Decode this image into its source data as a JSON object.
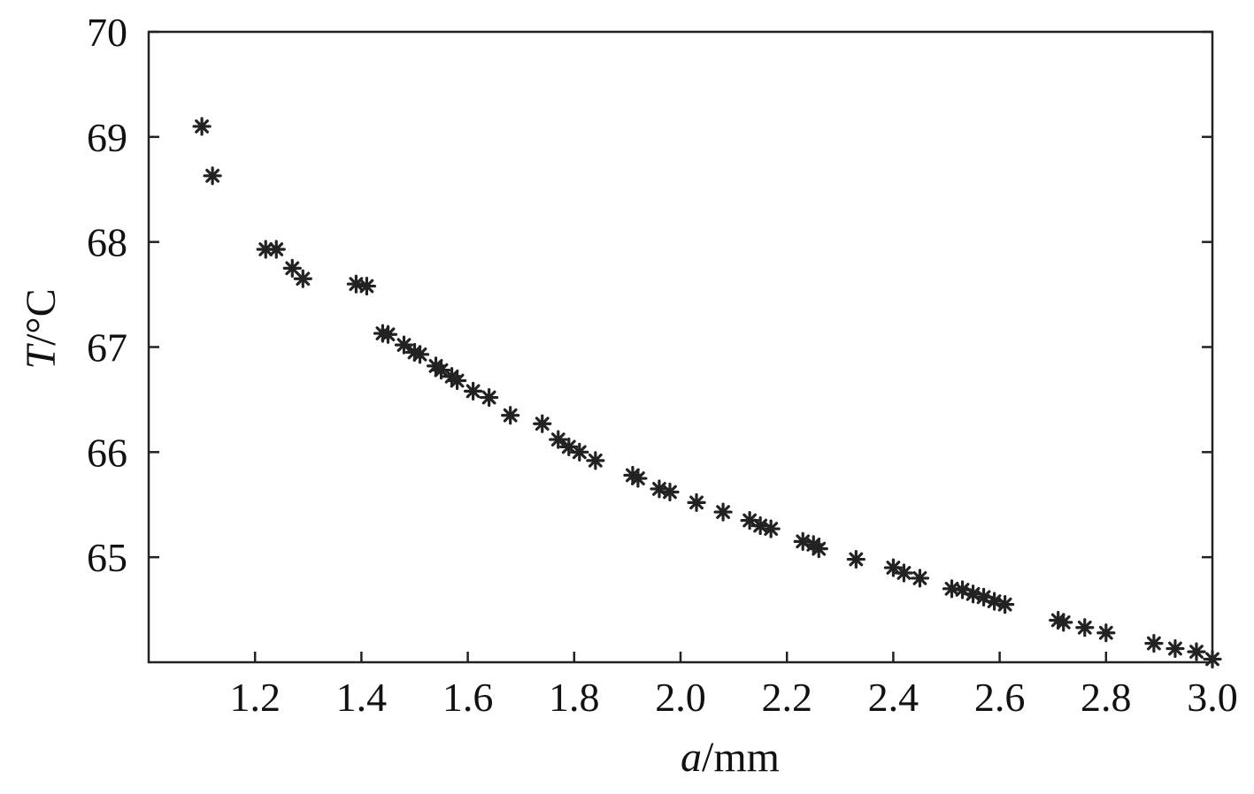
{
  "chart_data": {
    "type": "scatter",
    "xlabel": {
      "italic": "a",
      "rest": "/mm"
    },
    "ylabel": {
      "italic": "T",
      "rest": "/°C"
    },
    "xlim": [
      1.0,
      3.0
    ],
    "ylim": [
      64.0,
      70.0
    ],
    "xticks": [
      "1.2",
      "1.4",
      "1.6",
      "1.8",
      "2.0",
      "2.2",
      "2.4",
      "2.6",
      "2.8",
      "3.0"
    ],
    "yticks": [
      "65",
      "66",
      "67",
      "68",
      "69",
      "70"
    ],
    "grid": false,
    "marker_color": "#222222",
    "series": [
      {
        "points": [
          [
            1.1,
            69.1
          ],
          [
            1.12,
            68.63
          ],
          [
            1.22,
            67.93
          ],
          [
            1.24,
            67.93
          ],
          [
            1.27,
            67.75
          ],
          [
            1.29,
            67.65
          ],
          [
            1.39,
            67.6
          ],
          [
            1.41,
            67.58
          ],
          [
            1.44,
            67.13
          ],
          [
            1.45,
            67.12
          ],
          [
            1.48,
            67.02
          ],
          [
            1.5,
            66.95
          ],
          [
            1.51,
            66.93
          ],
          [
            1.54,
            66.82
          ],
          [
            1.55,
            66.78
          ],
          [
            1.57,
            66.72
          ],
          [
            1.58,
            66.68
          ],
          [
            1.61,
            66.58
          ],
          [
            1.64,
            66.52
          ],
          [
            1.68,
            66.35
          ],
          [
            1.74,
            66.27
          ],
          [
            1.77,
            66.12
          ],
          [
            1.79,
            66.05
          ],
          [
            1.81,
            66.0
          ],
          [
            1.84,
            65.92
          ],
          [
            1.91,
            65.78
          ],
          [
            1.92,
            65.75
          ],
          [
            1.96,
            65.65
          ],
          [
            1.98,
            65.62
          ],
          [
            2.03,
            65.52
          ],
          [
            2.08,
            65.43
          ],
          [
            2.13,
            65.35
          ],
          [
            2.15,
            65.3
          ],
          [
            2.17,
            65.27
          ],
          [
            2.23,
            65.15
          ],
          [
            2.25,
            65.12
          ],
          [
            2.26,
            65.08
          ],
          [
            2.33,
            64.98
          ],
          [
            2.4,
            64.9
          ],
          [
            2.42,
            64.85
          ],
          [
            2.45,
            64.8
          ],
          [
            2.51,
            64.7
          ],
          [
            2.53,
            64.69
          ],
          [
            2.55,
            64.65
          ],
          [
            2.57,
            64.62
          ],
          [
            2.59,
            64.58
          ],
          [
            2.61,
            64.55
          ],
          [
            2.71,
            64.4
          ],
          [
            2.72,
            64.38
          ],
          [
            2.76,
            64.33
          ],
          [
            2.8,
            64.28
          ],
          [
            2.89,
            64.18
          ],
          [
            2.93,
            64.13
          ],
          [
            2.97,
            64.1
          ],
          [
            3.0,
            64.03
          ]
        ]
      }
    ]
  }
}
